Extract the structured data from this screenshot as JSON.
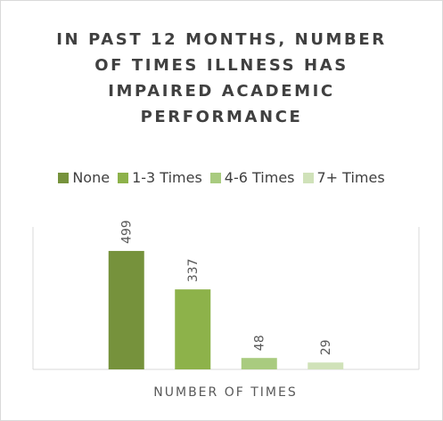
{
  "chart_data": {
    "type": "bar",
    "title": "IN PAST 12 MONTHS, NUMBER OF TIMES ILLNESS HAS IMPAIRED ACADEMIC PERFORMANCE",
    "x_label": "NUMBER OF TIMES",
    "categories": [
      null
    ],
    "series": [
      {
        "name": "None",
        "color": "#76923c",
        "values": [
          499
        ]
      },
      {
        "name": "1-3 Times",
        "color": "#8db24a",
        "values": [
          337
        ]
      },
      {
        "name": "4-6 Times",
        "color": "#a9cb7f",
        "values": [
          48
        ]
      },
      {
        "name": "7+ Times",
        "color": "#d0e2b9",
        "values": [
          29
        ]
      }
    ],
    "ylim": [
      0,
      600
    ],
    "legend": "top"
  }
}
